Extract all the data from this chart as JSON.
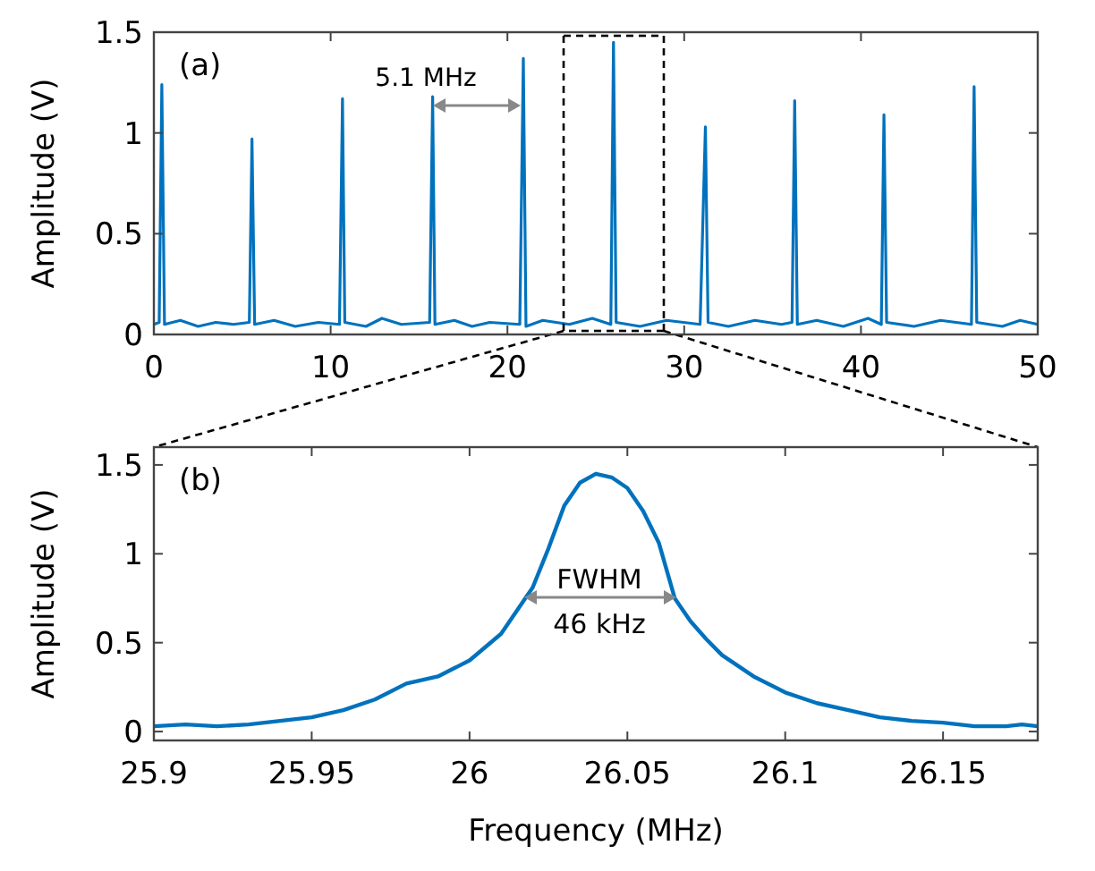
{
  "chart_data": [
    {
      "type": "line",
      "ylabel": "Amplitude (V)",
      "xlim": [
        0,
        50
      ],
      "xticks": [
        0,
        10,
        20,
        30,
        40,
        50
      ],
      "ylim": [
        0,
        1.5
      ],
      "yticks": [
        0,
        0.5,
        1,
        1.5
      ],
      "grid": false,
      "marker": "none",
      "line_style": "solid",
      "annotations": [
        "(a)",
        "5.1 MHz"
      ],
      "series": [
        {
          "color": "#0072bd",
          "x": [
            0,
            0.3,
            0.45,
            0.6,
            1.5,
            2.5,
            3.5,
            4.5,
            5.4,
            5.55,
            5.7,
            6.8,
            8,
            9.3,
            10.5,
            10.67,
            10.8,
            12,
            12.9,
            14,
            15.6,
            15.77,
            15.9,
            17,
            18,
            19,
            20.7,
            20.9,
            21.05,
            22,
            23.5,
            24.8,
            25.85,
            26.0,
            26.15,
            27.5,
            29,
            30.9,
            31.2,
            31.35,
            32.5,
            34,
            35.5,
            36.1,
            36.25,
            36.4,
            37.5,
            39,
            40.4,
            41.15,
            41.3,
            41.45,
            43,
            44.5,
            46.25,
            46.4,
            46.55,
            48,
            49,
            50
          ],
          "values": [
            0.05,
            0.06,
            1.24,
            0.05,
            0.07,
            0.04,
            0.06,
            0.05,
            0.06,
            0.97,
            0.05,
            0.07,
            0.04,
            0.06,
            0.05,
            1.17,
            0.06,
            0.04,
            0.08,
            0.05,
            0.06,
            1.18,
            0.05,
            0.07,
            0.04,
            0.06,
            0.05,
            1.37,
            0.04,
            0.07,
            0.05,
            0.08,
            0.05,
            1.45,
            0.06,
            0.04,
            0.07,
            0.05,
            1.03,
            0.06,
            0.04,
            0.07,
            0.05,
            0.06,
            1.16,
            0.05,
            0.07,
            0.04,
            0.08,
            0.05,
            1.09,
            0.06,
            0.04,
            0.07,
            0.05,
            1.23,
            0.06,
            0.04,
            0.07,
            0.05
          ]
        }
      ]
    },
    {
      "type": "line",
      "xlabel": "Frequency (MHz)",
      "ylabel": "Amplitude (V)",
      "xlim": [
        25.9,
        26.18
      ],
      "xticks": [
        25.9,
        25.95,
        26,
        26.05,
        26.1,
        26.15
      ],
      "ylim": [
        -0.05,
        1.6
      ],
      "yticks": [
        0,
        0.5,
        1,
        1.5
      ],
      "grid": false,
      "marker": "none",
      "line_style": "solid",
      "annotations": [
        "(b)",
        "FWHM",
        "46 kHz"
      ],
      "series": [
        {
          "color": "#0072bd",
          "x": [
            25.9,
            25.91,
            25.92,
            25.93,
            25.94,
            25.95,
            25.96,
            25.97,
            25.98,
            25.99,
            26.0,
            26.01,
            26.02,
            26.025,
            26.03,
            26.035,
            26.04,
            26.045,
            26.05,
            26.055,
            26.06,
            26.065,
            26.07,
            26.075,
            26.08,
            26.09,
            26.1,
            26.11,
            26.12,
            26.13,
            26.14,
            26.15,
            26.16,
            26.17,
            26.175,
            26.18
          ],
          "values": [
            0.03,
            0.04,
            0.03,
            0.04,
            0.06,
            0.08,
            0.12,
            0.18,
            0.27,
            0.31,
            0.4,
            0.55,
            0.81,
            1.03,
            1.27,
            1.4,
            1.45,
            1.43,
            1.37,
            1.24,
            1.06,
            0.75,
            0.62,
            0.52,
            0.43,
            0.31,
            0.22,
            0.16,
            0.12,
            0.08,
            0.06,
            0.05,
            0.03,
            0.03,
            0.04,
            0.03
          ]
        }
      ]
    }
  ]
}
